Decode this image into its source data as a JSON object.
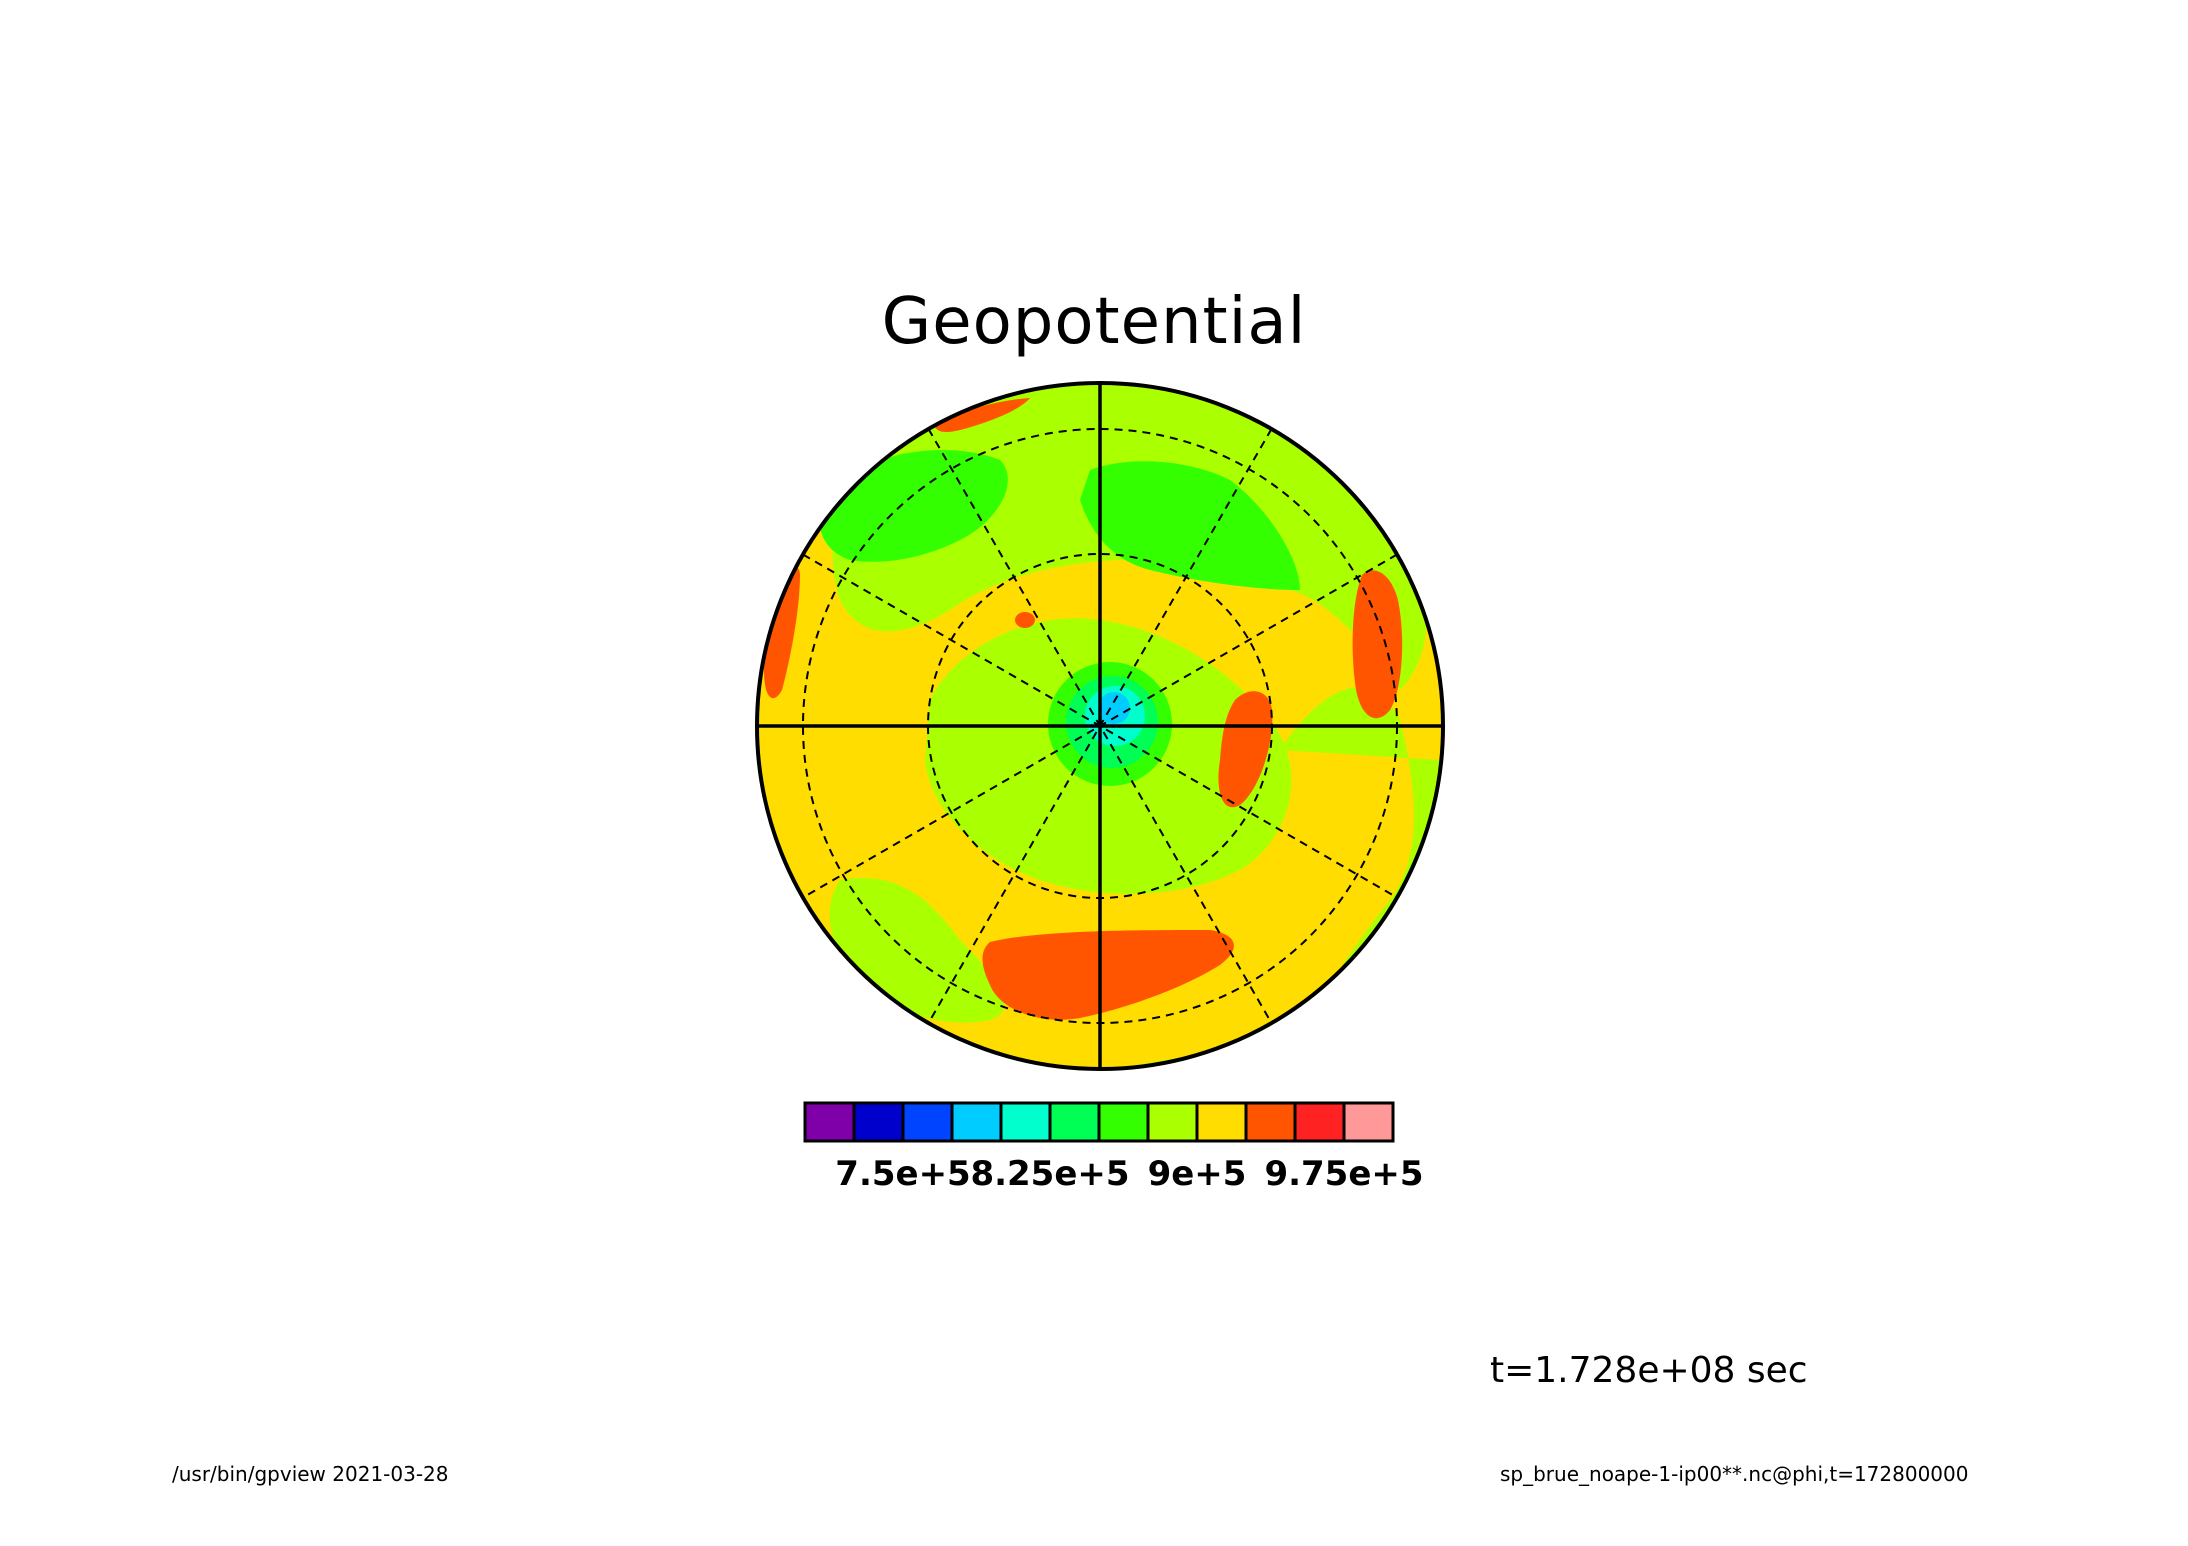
{
  "chart_data": {
    "type": "heatmap",
    "projection": "polar",
    "title": "Geopotential",
    "grid": true,
    "colorbar": {
      "placement": "bottom",
      "colors": [
        "#7f00a8",
        "#0000cc",
        "#0044ff",
        "#00ccff",
        "#00ffcc",
        "#00ff55",
        "#33ff00",
        "#aaff00",
        "#ffdd00",
        "#ff5500",
        "#ff2222",
        "#ff9999"
      ],
      "tick_labels": [
        "7.5e+5",
        "8.25e+5",
        "9e+5",
        "9.75e+5"
      ],
      "tick_values": [
        750000,
        825000,
        900000,
        975000
      ],
      "boundaries": [
        700000,
        725000,
        750000,
        775000,
        800000,
        825000,
        850000,
        875000,
        900000,
        925000,
        950000,
        975000,
        1000000
      ]
    }
  },
  "time_label": "t=1.728e+08 sec",
  "footer": {
    "left": "/usr/bin/gpview   2021-03-28",
    "right": "sp_brue_noape-1-ip00**.nc@phi,t=172800000"
  }
}
